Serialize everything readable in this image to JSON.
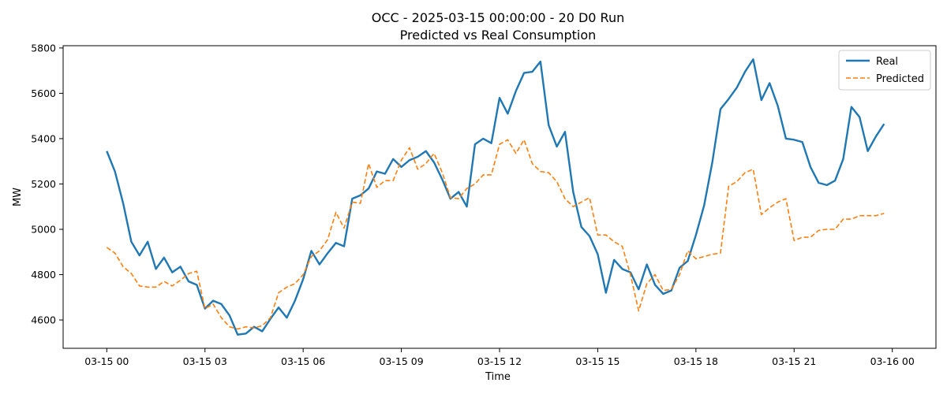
{
  "chart_data": {
    "type": "line",
    "title": "OCC - 2025-03-15 00:00:00 - 20 D0 Run",
    "subtitle": "Predicted vs Real Consumption",
    "xlabel": "Time",
    "ylabel": "MW",
    "xlim": [
      "2025-03-14 22:40",
      "2025-03-16 01:20"
    ],
    "ylim": [
      4475,
      5810
    ],
    "x_ticks": [
      "03-15 00",
      "03-15 03",
      "03-15 06",
      "03-15 09",
      "03-15 12",
      "03-15 15",
      "03-15 18",
      "03-15 21",
      "03-16 00"
    ],
    "y_ticks": [
      4600,
      4800,
      5000,
      5200,
      5400,
      5600,
      5800
    ],
    "x_start": "2025-03-15 00:00",
    "x_step": "15 min",
    "legend_position": "top-right",
    "grid": false,
    "series": [
      {
        "name": "Real",
        "color": "#1f77b4",
        "style": "solid",
        "values": [
          5345,
          5255,
          5115,
          4945,
          4885,
          4945,
          4825,
          4875,
          4810,
          4835,
          4770,
          4755,
          4650,
          4685,
          4670,
          4620,
          4535,
          4540,
          4570,
          4550,
          4605,
          4655,
          4610,
          4685,
          4780,
          4905,
          4845,
          4895,
          4940,
          4925,
          5135,
          5150,
          5180,
          5255,
          5245,
          5310,
          5275,
          5305,
          5320,
          5345,
          5295,
          5220,
          5135,
          5165,
          5100,
          5375,
          5400,
          5380,
          5580,
          5510,
          5610,
          5690,
          5695,
          5740,
          5460,
          5365,
          5430,
          5165,
          5010,
          4970,
          4890,
          4720,
          4865,
          4825,
          4810,
          4735,
          4845,
          4755,
          4715,
          4730,
          4830,
          4860,
          4975,
          5105,
          5295,
          5530,
          5575,
          5625,
          5695,
          5750,
          5570,
          5645,
          5545,
          5400,
          5395,
          5385,
          5275,
          5205,
          5195,
          5215,
          5310,
          5540,
          5495,
          5345,
          5410,
          5465
        ]
      },
      {
        "name": "Predicted",
        "color": "#ff7f0e",
        "style": "dashed",
        "values": [
          4920,
          4895,
          4835,
          4805,
          4750,
          4745,
          4745,
          4770,
          4750,
          4775,
          4805,
          4815,
          4650,
          4670,
          4610,
          4570,
          4560,
          4570,
          4565,
          4575,
          4610,
          4720,
          4745,
          4760,
          4800,
          4880,
          4905,
          4955,
          5075,
          5005,
          5120,
          5115,
          5290,
          5185,
          5215,
          5215,
          5305,
          5360,
          5265,
          5290,
          5335,
          5250,
          5140,
          5135,
          5180,
          5200,
          5240,
          5240,
          5375,
          5395,
          5335,
          5395,
          5290,
          5255,
          5250,
          5210,
          5135,
          5100,
          5120,
          5140,
          4975,
          4975,
          4945,
          4925,
          4800,
          4640,
          4760,
          4800,
          4730,
          4735,
          4800,
          4905,
          4870,
          4880,
          4890,
          4895,
          5190,
          5210,
          5250,
          5265,
          5065,
          5095,
          5120,
          5135,
          4950,
          4965,
          4965,
          4995,
          5000,
          5000,
          5045,
          5045,
          5060,
          5060,
          5060,
          5070
        ]
      }
    ]
  }
}
